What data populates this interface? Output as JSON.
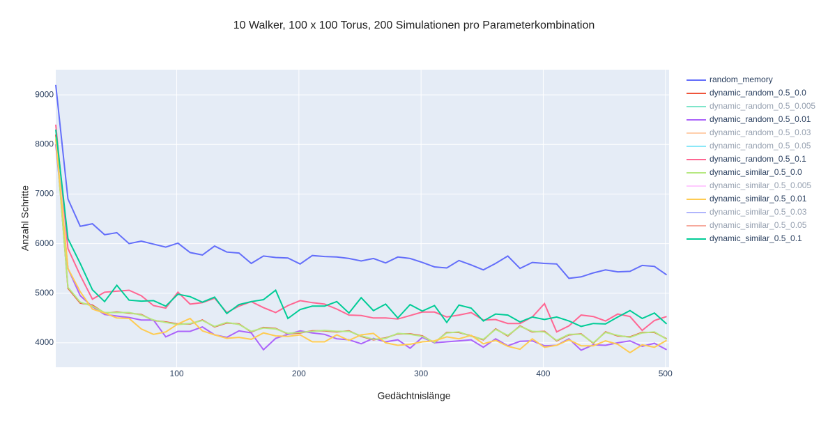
{
  "chart_data": {
    "type": "line",
    "title": "10 Walker, 100 x 100 Torus, 200 Simulationen pro Parameterkombination",
    "x_label": "Gedächtnislänge",
    "y_label": "Anzahl Schritte",
    "x": [
      1,
      11,
      21,
      31,
      41,
      51,
      61,
      71,
      81,
      91,
      101,
      111,
      121,
      131,
      141,
      151,
      161,
      171,
      181,
      191,
      201,
      211,
      221,
      231,
      241,
      251,
      261,
      271,
      281,
      291,
      301,
      311,
      321,
      331,
      341,
      351,
      361,
      371,
      381,
      391,
      401,
      411,
      421,
      431,
      441,
      451,
      461,
      471,
      481,
      491,
      501
    ],
    "xlim": [
      1,
      503
    ],
    "ylim": [
      3507,
      9507
    ],
    "xticks": [
      100,
      200,
      300,
      400,
      500
    ],
    "yticks": [
      4000,
      5000,
      6000,
      7000,
      8000,
      9000
    ],
    "grid": true,
    "legend": "right",
    "series": [
      {
        "name": "random_memory",
        "color": "#636efa",
        "visible": true,
        "values": [
          9200,
          6900,
          6350,
          6400,
          6180,
          6220,
          6000,
          6050,
          5990,
          5930,
          6010,
          5820,
          5770,
          5950,
          5830,
          5810,
          5600,
          5750,
          5720,
          5710,
          5590,
          5760,
          5740,
          5730,
          5700,
          5650,
          5700,
          5610,
          5730,
          5700,
          5620,
          5530,
          5510,
          5660,
          5570,
          5470,
          5600,
          5750,
          5500,
          5620,
          5600,
          5590,
          5300,
          5330,
          5410,
          5470,
          5430,
          5440,
          5560,
          5540,
          5370
        ]
      },
      {
        "name": "dynamic_random_0.5_0.0",
        "color": "#EF553B",
        "visible": true,
        "values": [
          8200,
          5100,
          4800,
          4760,
          4600,
          4620,
          4600,
          4570,
          4450,
          4420,
          4380,
          4380,
          4460,
          4320,
          4400,
          4380,
          4220,
          4310,
          4290,
          4180,
          4200,
          4240,
          4240,
          4220,
          4240,
          4130,
          4060,
          4100,
          4180,
          4180,
          4140,
          4000,
          4210,
          4210,
          4140,
          4060,
          4280,
          4140,
          4340,
          4220,
          4230,
          4040,
          4160,
          4180,
          3990,
          4220,
          4140,
          4120,
          4210,
          4210,
          4080
        ]
      },
      {
        "name": "dynamic_random_0.5_0.005",
        "color": "#00cc96",
        "visible": false
      },
      {
        "name": "dynamic_random_0.5_0.01",
        "color": "#ab63fa",
        "visible": true,
        "values": [
          8000,
          5500,
          4950,
          4730,
          4570,
          4540,
          4510,
          4460,
          4460,
          4120,
          4230,
          4230,
          4320,
          4160,
          4110,
          4240,
          4200,
          3860,
          4090,
          4170,
          4240,
          4200,
          4170,
          4080,
          4060,
          3980,
          4090,
          4020,
          4060,
          3890,
          4110,
          4000,
          4020,
          4040,
          4060,
          3910,
          4080,
          3940,
          4030,
          4040,
          3940,
          3950,
          4080,
          3850,
          3960,
          3950,
          4000,
          4040,
          3930,
          3990,
          3860
        ]
      },
      {
        "name": "dynamic_random_0.5_0.03",
        "color": "#FFA15A",
        "visible": false
      },
      {
        "name": "dynamic_random_0.5_0.05",
        "color": "#19d3f3",
        "visible": false
      },
      {
        "name": "dynamic_random_0.5_0.1",
        "color": "#FF6692",
        "visible": true,
        "values": [
          8400,
          5900,
          5360,
          4880,
          5020,
          5040,
          5060,
          4950,
          4750,
          4700,
          5020,
          4780,
          4810,
          4900,
          4610,
          4740,
          4830,
          4710,
          4610,
          4750,
          4850,
          4810,
          4780,
          4680,
          4560,
          4550,
          4500,
          4500,
          4480,
          4550,
          4620,
          4620,
          4520,
          4560,
          4610,
          4460,
          4470,
          4390,
          4390,
          4520,
          4790,
          4220,
          4340,
          4560,
          4530,
          4440,
          4580,
          4530,
          4250,
          4450,
          4530
        ]
      },
      {
        "name": "dynamic_similar_0.5_0.0",
        "color": "#B6E880",
        "visible": true,
        "values": [
          8150,
          5120,
          4820,
          4740,
          4610,
          4610,
          4610,
          4560,
          4460,
          4410,
          4370,
          4390,
          4450,
          4330,
          4410,
          4370,
          4230,
          4300,
          4280,
          4190,
          4210,
          4230,
          4250,
          4230,
          4230,
          4140,
          4070,
          4090,
          4190,
          4170,
          4130,
          4010,
          4200,
          4220,
          4130,
          4070,
          4270,
          4150,
          4330,
          4230,
          4220,
          4050,
          4170,
          4170,
          4000,
          4210,
          4150,
          4110,
          4200,
          4220,
          4070
        ]
      },
      {
        "name": "dynamic_similar_0.5_0.005",
        "color": "#FF97FF",
        "visible": false
      },
      {
        "name": "dynamic_similar_0.5_0.01",
        "color": "#FECB52",
        "visible": true,
        "values": [
          8100,
          5500,
          5030,
          4680,
          4600,
          4500,
          4490,
          4280,
          4170,
          4220,
          4380,
          4490,
          4240,
          4160,
          4090,
          4110,
          4070,
          4200,
          4140,
          4130,
          4160,
          4020,
          4020,
          4160,
          4050,
          4160,
          4190,
          4000,
          3950,
          3970,
          4020,
          4040,
          4120,
          4080,
          4150,
          3980,
          4050,
          3930,
          3870,
          4080,
          3910,
          3950,
          4060,
          3940,
          3940,
          4040,
          3970,
          3800,
          3960,
          3910,
          4050
        ]
      },
      {
        "name": "dynamic_similar_0.5_0.03",
        "color": "#636efa",
        "visible": false
      },
      {
        "name": "dynamic_similar_0.5_0.05",
        "color": "#EF553B",
        "visible": false
      },
      {
        "name": "dynamic_similar_0.5_0.1",
        "color": "#00cc96",
        "visible": true,
        "values": [
          8300,
          6100,
          5600,
          5070,
          4830,
          5160,
          4860,
          4840,
          4850,
          4740,
          4980,
          4930,
          4820,
          4920,
          4590,
          4770,
          4830,
          4870,
          5060,
          4490,
          4670,
          4740,
          4740,
          4830,
          4600,
          4910,
          4650,
          4780,
          4500,
          4770,
          4640,
          4750,
          4410,
          4760,
          4700,
          4440,
          4580,
          4560,
          4420,
          4520,
          4470,
          4520,
          4440,
          4330,
          4390,
          4380,
          4520,
          4650,
          4490,
          4600,
          4380
        ]
      }
    ]
  }
}
